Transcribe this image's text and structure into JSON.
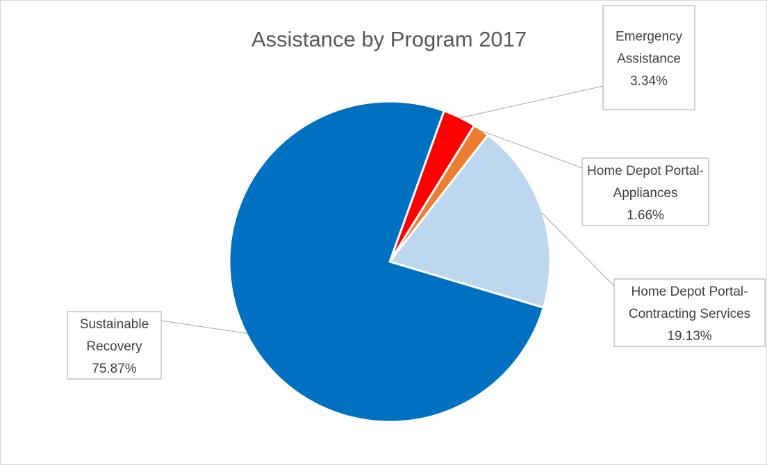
{
  "chart_data": {
    "type": "pie",
    "title": "Assistance by Program 2017",
    "slices": [
      {
        "label_lines": [
          "Emergency",
          "Assistance"
        ],
        "value": 3.34,
        "value_label": "3.34%",
        "color": "#ff0000"
      },
      {
        "label_lines": [
          "Home Depot Portal-",
          "Appliances"
        ],
        "value": 1.66,
        "value_label": "1.66%",
        "color": "#ed7d31"
      },
      {
        "label_lines": [
          "Home Depot Portal-",
          "Contracting Services"
        ],
        "value": 19.13,
        "value_label": "19.13%",
        "color": "#bdd7ee"
      },
      {
        "label_lines": [
          "Sustainable",
          "Recovery"
        ],
        "value": 75.87,
        "value_label": "75.87%",
        "color": "#0070c0"
      }
    ],
    "start_angle_deg": 19.8,
    "direction": "clockwise",
    "legend": "none",
    "data_labels": "callouts"
  }
}
